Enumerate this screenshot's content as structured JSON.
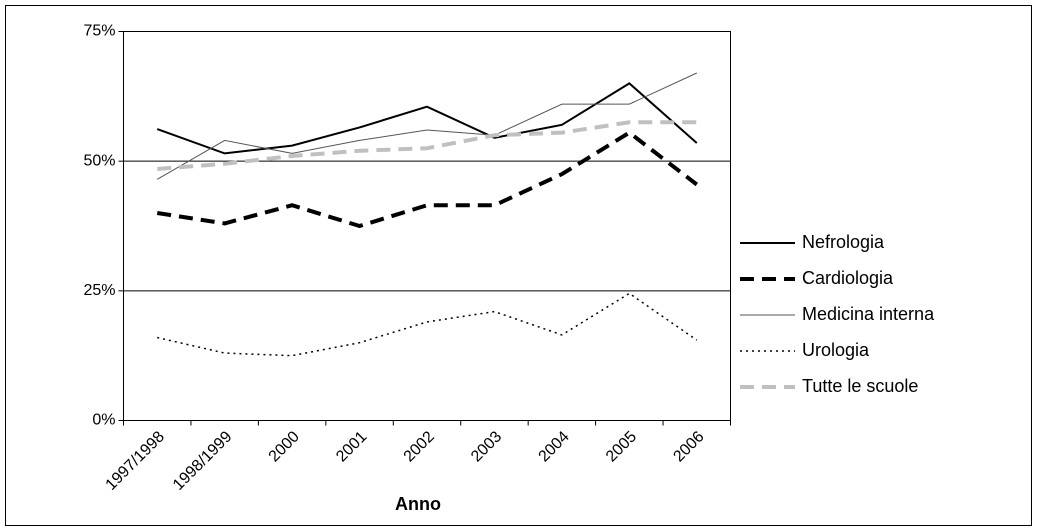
{
  "chart_data": {
    "type": "line",
    "x_label": "Anno",
    "categories": [
      "1997/1998",
      "1998/1999",
      "2000",
      "2001",
      "2002",
      "2003",
      "2004",
      "2005",
      "2006"
    ],
    "series": [
      {
        "name": "Nefrologia",
        "color": "#000000",
        "style": "solid",
        "values": [
          56.2,
          51.5,
          53,
          56.5,
          60.5,
          54.5,
          57,
          65,
          53.5
        ]
      },
      {
        "name": "Cardiologia",
        "color": "#000000",
        "style": "thick-dash",
        "values": [
          40,
          38,
          41.5,
          37.5,
          41.5,
          41.5,
          47.5,
          55.5,
          45.5
        ]
      },
      {
        "name": "Medicina interna",
        "color": "#555555",
        "style": "thin",
        "values": [
          46.5,
          54,
          51.5,
          54,
          56,
          55,
          61,
          61,
          67
        ]
      },
      {
        "name": "Urologia",
        "color": "#000000",
        "style": "dotted",
        "values": [
          16,
          13,
          12.5,
          15,
          19,
          21,
          16.5,
          24.5,
          15.5
        ]
      },
      {
        "name": "Tutte le scuole",
        "color": "#c0c0c0",
        "style": "thick-dash",
        "values": [
          48.5,
          49.5,
          51,
          52,
          52.5,
          55,
          55.5,
          57.5,
          57.5
        ]
      }
    ],
    "ylim": [
      0,
      75
    ],
    "yticks": [
      {
        "value": 0,
        "label": "0%"
      },
      {
        "value": 25,
        "label": "25%"
      },
      {
        "value": 50,
        "label": "50%"
      },
      {
        "value": 75,
        "label": "75%"
      }
    ],
    "grid": true,
    "legend": "right"
  }
}
